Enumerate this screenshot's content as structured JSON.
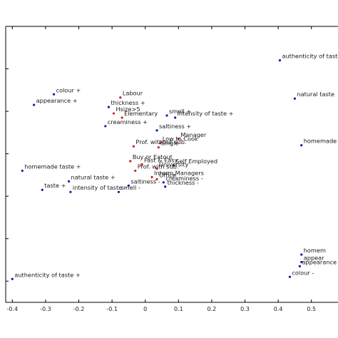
{
  "chart_data": {
    "type": "scatter",
    "title": "",
    "xlabel": "",
    "ylabel": "",
    "xlim": [
      -0.42,
      0.58
    ],
    "x_ticks": [
      -0.4,
      -0.3,
      -0.2,
      -0.1,
      0,
      0.1,
      0.2,
      0.3,
      0.4,
      0.5
    ],
    "x_tick_labels": [
      "-0.4",
      "-0.3",
      "-0.2",
      "-0.1",
      "0",
      "0.1",
      "0.2",
      "0.3",
      "0.4",
      "0.5"
    ],
    "grid": false,
    "colors": {
      "attributes": "#1a1aa6",
      "respondents": "#cc1f1f",
      "axis": "#000000"
    },
    "series": [
      {
        "color": "#1a1aa6",
        "points": [
          {
            "x": -0.275,
            "y": 0.88,
            "label": "colour +"
          },
          {
            "x": -0.335,
            "y": 0.83,
            "label": "appearance +"
          },
          {
            "x": -0.11,
            "y": 0.82,
            "label": "thickness +"
          },
          {
            "x": -0.12,
            "y": 0.73,
            "label": "creaminess +"
          },
          {
            "x": 0.065,
            "y": 0.78,
            "label": "smell +"
          },
          {
            "x": 0.09,
            "y": 0.77,
            "label": "intensity of taste +"
          },
          {
            "x": 0.035,
            "y": 0.71,
            "label": "saltiness +"
          },
          {
            "x": 0.405,
            "y": 1.04,
            "label": "authenticity of taste"
          },
          {
            "x": 0.45,
            "y": 0.86,
            "label": "natural taste"
          },
          {
            "x": 0.47,
            "y": 0.64,
            "label": "homemade taste"
          },
          {
            "x": -0.37,
            "y": 0.52,
            "label": "homemade taste +"
          },
          {
            "x": -0.23,
            "y": 0.47,
            "label": "natural taste +"
          },
          {
            "x": -0.31,
            "y": 0.43,
            "label": "taste +"
          },
          {
            "x": -0.225,
            "y": 0.42,
            "label": "intensity of taste -"
          },
          {
            "x": -0.08,
            "y": 0.42,
            "label": "smell -"
          },
          {
            "x": -0.05,
            "y": 0.45,
            "label": "saltiness -"
          },
          {
            "x": 0.055,
            "y": 0.465,
            "label": "creaminess -"
          },
          {
            "x": 0.06,
            "y": 0.445,
            "label": "thickness -"
          },
          {
            "x": -0.4,
            "y": 0.01,
            "label": "authenticity of taste +"
          },
          {
            "x": 0.465,
            "y": 0.07,
            "label": "appearance -"
          },
          {
            "x": 0.435,
            "y": 0.02,
            "label": "colour -"
          },
          {
            "x": 0.47,
            "y": 0.125,
            "label": "homem"
          },
          {
            "x": 0.47,
            "y": 0.09,
            "label": "appear"
          }
        ]
      },
      {
        "color": "#cc1f1f",
        "points": [
          {
            "x": -0.075,
            "y": 0.865,
            "label": "Labour"
          },
          {
            "x": -0.095,
            "y": 0.79,
            "label": "Hsize>5"
          },
          {
            "x": -0.07,
            "y": 0.77,
            "label": "Elementary"
          },
          {
            "x": 0.1,
            "y": 0.67,
            "label": "Manager"
          },
          {
            "x": 0.045,
            "y": 0.65,
            "label": "Low to Cook"
          },
          {
            "x": 0.04,
            "y": 0.63,
            "label": "Single"
          },
          {
            "x": -0.035,
            "y": 0.635,
            "label": "Prof. without sub."
          },
          {
            "x": -0.045,
            "y": 0.565,
            "label": "Buy or Eatout"
          },
          {
            "x": -0.01,
            "y": 0.55,
            "label": "Fast & Easy"
          },
          {
            "x": 0.085,
            "y": 0.545,
            "label": "Self Employed"
          },
          {
            "x": 0.035,
            "y": 0.53,
            "label": "University"
          },
          {
            "x": -0.03,
            "y": 0.52,
            "label": "Prof. with sub."
          },
          {
            "x": 0.02,
            "y": 0.49,
            "label": "Interm.Managers"
          },
          {
            "x": 0.035,
            "y": 0.48,
            "label": "Office"
          }
        ]
      }
    ]
  }
}
